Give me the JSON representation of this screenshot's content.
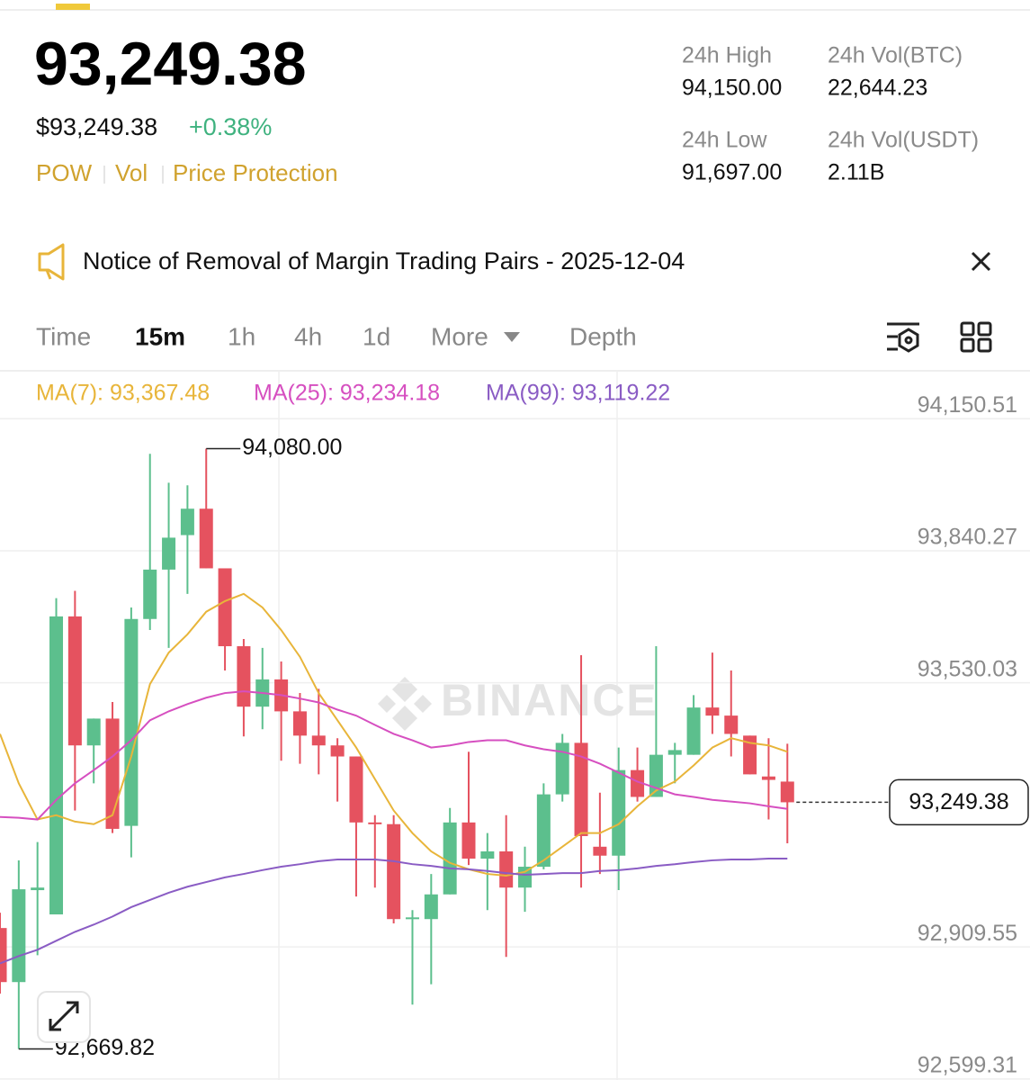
{
  "header": {
    "price": "93,249.38",
    "fiat_price": "$93,249.38",
    "change": "+0.38%",
    "tags": [
      "POW",
      "Vol",
      "Price Protection"
    ]
  },
  "stats": [
    {
      "label": "24h High",
      "value": "94,150.00"
    },
    {
      "label": "24h Vol(BTC)",
      "value": "22,644.23"
    },
    {
      "label": "24h Low",
      "value": "91,697.00"
    },
    {
      "label": "24h Vol(USDT)",
      "value": "2.11B"
    }
  ],
  "notice": "Notice of Removal of Margin Trading Pairs - 2025-12-04",
  "tabs": [
    "Time",
    "15m",
    "1h",
    "4h",
    "1d",
    "More",
    "Depth"
  ],
  "chart_data": {
    "type": "candlestick",
    "watermark": "BINANCE",
    "open": [
      92954,
      92827,
      93043,
      92986,
      93686,
      93383,
      93446,
      93194,
      93680,
      93796,
      93877,
      93939,
      93799,
      93616,
      93474,
      93538,
      93463,
      93406,
      93383,
      93357,
      93202,
      93198,
      92975,
      92975,
      93033,
      93202,
      93117,
      93134,
      93049,
      93098,
      93268,
      93389,
      93145,
      93124,
      93325,
      93262,
      93361,
      93361,
      93472,
      93453,
      93406,
      93310,
      93298
    ],
    "high": [
      92990,
      93113,
      93156,
      93729,
      93746,
      93446,
      93485,
      93707,
      94068,
      94000,
      93994,
      94080,
      93799,
      93633,
      93612,
      93580,
      93506,
      93516,
      93400,
      93357,
      93219,
      93219,
      92996,
      93081,
      93236,
      93368,
      93177,
      93219,
      93145,
      93294,
      93410,
      93595,
      93272,
      93378,
      93378,
      93616,
      93389,
      93501,
      93601,
      93559,
      93406,
      93400,
      93387
    ],
    "low": [
      92800,
      92669.82,
      92890,
      92986,
      93230,
      93294,
      93177,
      93120,
      93654,
      93612,
      93739,
      93799,
      93559,
      93404,
      93421,
      93347,
      93340,
      93315,
      93251,
      93028,
      93049,
      92965,
      92774,
      92822,
      93033,
      93102,
      92996,
      92886,
      92992,
      93092,
      93251,
      93049,
      93081,
      93043,
      93251,
      93262,
      93294,
      93361,
      93410,
      93357,
      93315,
      93209,
      93153
    ],
    "close": [
      92827,
      93045,
      93049,
      93686,
      93383,
      93446,
      93187,
      93680,
      93796,
      93871,
      93939,
      93799,
      93616,
      93474,
      93538,
      93463,
      93406,
      93383,
      93357,
      93202,
      93198,
      92975,
      92979,
      93033,
      93202,
      93117,
      93134,
      93049,
      93098,
      93268,
      93389,
      93170,
      93124,
      93325,
      93262,
      93361,
      93372,
      93472,
      93453,
      93410,
      93315,
      93302,
      93249.38
    ],
    "up_color": "#5cbf8d",
    "down_color": "#e5525f",
    "series": [
      {
        "name": "MA(7): 93,367.48",
        "color": "#e8b53a",
        "values": [
          93410,
          93294,
          93209,
          93219,
          93204,
          93198,
          93219,
          93357,
          93527,
          93601,
          93644,
          93697,
          93722,
          93739,
          93707,
          93654,
          93591,
          93506,
          93442,
          93378,
          93304,
          93230,
          93177,
          93134,
          93107,
          93092,
          93081,
          93077,
          93086,
          93113,
          93145,
          93177,
          93177,
          93198,
          93240,
          93277,
          93298,
          93336,
          93378,
          93400,
          93389,
          93383,
          93368
        ]
      },
      {
        "name": "MA(25): 93,234.18",
        "color": "#d64fc0",
        "values": [
          93215,
          93213,
          93209,
          93255,
          93294,
          93325,
          93357,
          93395,
          93442,
          93463,
          93480,
          93495,
          93506,
          93510,
          93506,
          93501,
          93493,
          93484,
          93467,
          93453,
          93431,
          93410,
          93395,
          93378,
          93383,
          93391,
          93395,
          93395,
          93383,
          93374,
          93368,
          93357,
          93340,
          93319,
          93298,
          93283,
          93268,
          93262,
          93255,
          93251,
          93247,
          93240,
          93234
        ]
      },
      {
        "name": "MA(99): 93,119.22",
        "color": "#8a5cc4",
        "values": [
          92871,
          92888,
          92903,
          92924,
          92945,
          92962,
          92981,
          93003,
          93020,
          93037,
          93051,
          93062,
          93073,
          93081,
          93090,
          93098,
          93104,
          93111,
          93115,
          93115,
          93115,
          93111,
          93104,
          93100,
          93094,
          93092,
          93088,
          93083,
          93079,
          93081,
          93083,
          93083,
          93088,
          93090,
          93094,
          93100,
          93104,
          93109,
          93113,
          93115,
          93115,
          93117,
          93117
        ]
      }
    ],
    "ylim": [
      92597,
      94263
    ],
    "yticks": [
      {
        "value": 94150.51,
        "label": "94,150.51"
      },
      {
        "value": 93840.27,
        "label": "93,840.27"
      },
      {
        "value": 93530.03,
        "label": "93,530.03"
      },
      {
        "value": 92909.55,
        "label": "92,909.55"
      },
      {
        "value": 92599.31,
        "label": "92,599.31"
      }
    ],
    "grid": true,
    "annotations": [
      {
        "value": 94080,
        "label": "94,080.00"
      },
      {
        "value": 92669.82,
        "label": "92,669.82"
      }
    ],
    "current_price": {
      "value": 93249.38,
      "label": "93,249.38"
    }
  }
}
